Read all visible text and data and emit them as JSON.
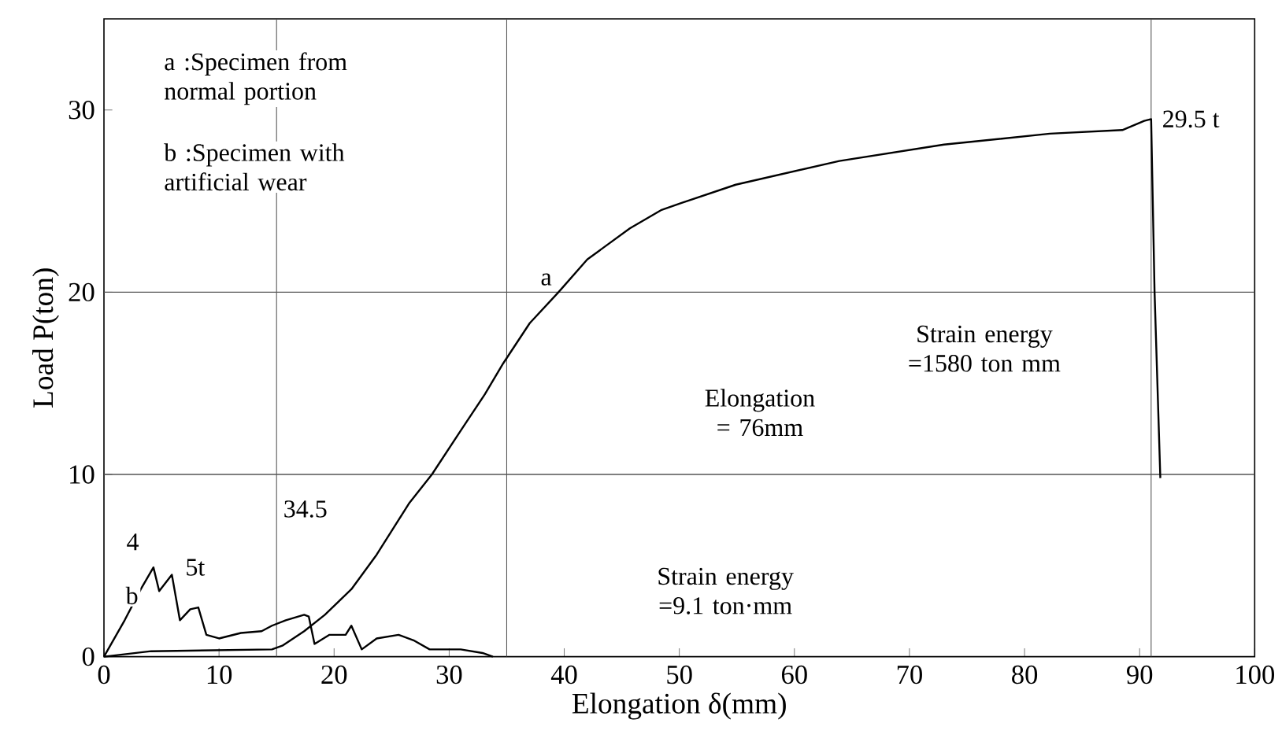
{
  "chart_data": {
    "type": "line",
    "xlabel": "Elongation  δ(mm)",
    "ylabel": "Load  P(ton)",
    "xlim": [
      0,
      100
    ],
    "ylim": [
      0,
      35
    ],
    "xticks": [
      0,
      10,
      20,
      30,
      40,
      50,
      60,
      70,
      80,
      90,
      100
    ],
    "yticks": [
      0,
      10,
      20,
      30
    ],
    "grid": false,
    "marker": "none",
    "line_style": "solid",
    "series": [
      {
        "color": "#000000",
        "x": [
          0,
          4.1,
          14.6,
          15.5,
          17.4,
          19.2,
          21.5,
          23.7,
          26.5,
          28.5,
          31,
          33.1,
          34.7,
          37,
          39.5,
          42,
          45.7,
          48.4,
          50.2,
          54.9,
          63.9,
          73,
          82.2,
          88.5,
          90.4,
          91,
          91.3,
          91.8
        ],
        "values": [
          0,
          0.3,
          0.4,
          0.6,
          1.4,
          2.3,
          3.7,
          5.6,
          8.4,
          10,
          12.4,
          14.4,
          16.1,
          18.3,
          20,
          21.8,
          23.5,
          24.5,
          24.9,
          25.9,
          27.2,
          28.1,
          28.7,
          28.9,
          29.4,
          29.5,
          20,
          9.8
        ]
      },
      {
        "color": "#000000",
        "x": [
          0,
          1.8,
          3.2,
          4.3,
          4.8,
          5.9,
          6.6,
          7.5,
          8.2,
          8.9,
          10,
          11.9,
          13.7,
          14.6,
          15.8,
          17.4,
          17.8,
          18.3,
          19.6,
          21,
          21.5,
          22.4,
          23.7,
          25.6,
          26.9,
          28.3,
          29.7,
          31,
          32.9,
          33.8
        ],
        "values": [
          0,
          2,
          3.7,
          4.9,
          3.6,
          4.5,
          2,
          2.6,
          2.7,
          1.2,
          1,
          1.3,
          1.4,
          1.7,
          2,
          2.3,
          2.2,
          0.7,
          1.2,
          1.2,
          1.7,
          0.4,
          1,
          1.2,
          0.9,
          0.4,
          0.4,
          0.4,
          0.2,
          0
        ]
      }
    ],
    "ref_lines": [
      {
        "axis": "y",
        "value": 10
      },
      {
        "axis": "y",
        "value": 20
      },
      {
        "axis": "x",
        "value": 15
      },
      {
        "axis": "x",
        "value": 35
      },
      {
        "axis": "x",
        "value": 91
      }
    ],
    "annotations": [
      "a :Specimen from normal portion",
      "b :Specimen with artificial wear",
      "4",
      "34.5",
      "Elongation = 76mm",
      "Strain energy =1580 ton mm",
      "Strain energy =9.1 ton·mm",
      {
        "text": "a",
        "x": 39.5,
        "y": 20
      },
      {
        "text": "b",
        "x": 4.3,
        "y": 4.9
      },
      {
        "text": "29.5 t",
        "x": 91,
        "y": 29.5
      },
      {
        "text": "5t",
        "x": 4.3,
        "y": 4.9
      }
    ]
  }
}
